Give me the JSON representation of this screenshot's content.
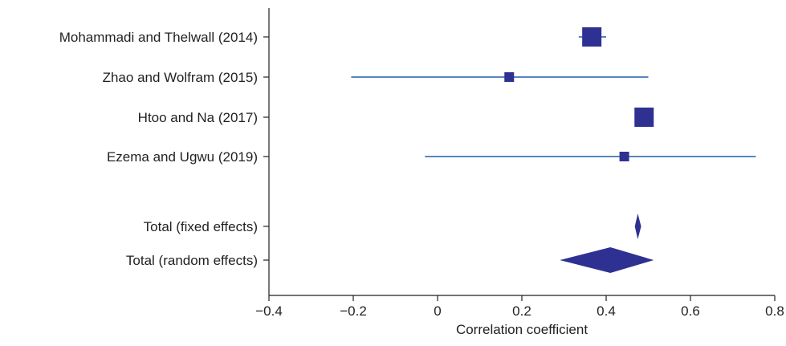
{
  "chart_data": {
    "type": "forest",
    "xlabel": "Correlation coefficient",
    "xlim": [
      -0.4,
      0.8
    ],
    "xticks": [
      -0.4,
      -0.2,
      0,
      0.2,
      0.4,
      0.6,
      0.8
    ],
    "xtick_labels": [
      "−0.4",
      "−0.2",
      "0",
      "0.2",
      "0.4",
      "0.6",
      "0.8"
    ],
    "marker_color": "#2e3192",
    "ci_color": "#1f5fa8",
    "studies": [
      {
        "label": "Mohammadi and Thelwall (2014)",
        "estimate": 0.366,
        "ci": [
          0.335,
          0.4
        ],
        "weight": "large"
      },
      {
        "label": "Zhao and Wolfram (2015)",
        "estimate": 0.17,
        "ci": [
          -0.205,
          0.5
        ],
        "weight": "small"
      },
      {
        "label": "Htoo and Na (2017)",
        "estimate": 0.49,
        "ci": [
          0.47,
          0.51
        ],
        "weight": "large"
      },
      {
        "label": "Ezema and Ugwu (2019)",
        "estimate": 0.443,
        "ci": [
          -0.03,
          0.755
        ],
        "weight": "small"
      }
    ],
    "totals": [
      {
        "label": "Total (fixed effects)",
        "estimate": 0.475,
        "ci": [
          0.468,
          0.483
        ]
      },
      {
        "label": "Total (random effects)",
        "estimate": 0.41,
        "ci": [
          0.29,
          0.513
        ]
      }
    ]
  }
}
